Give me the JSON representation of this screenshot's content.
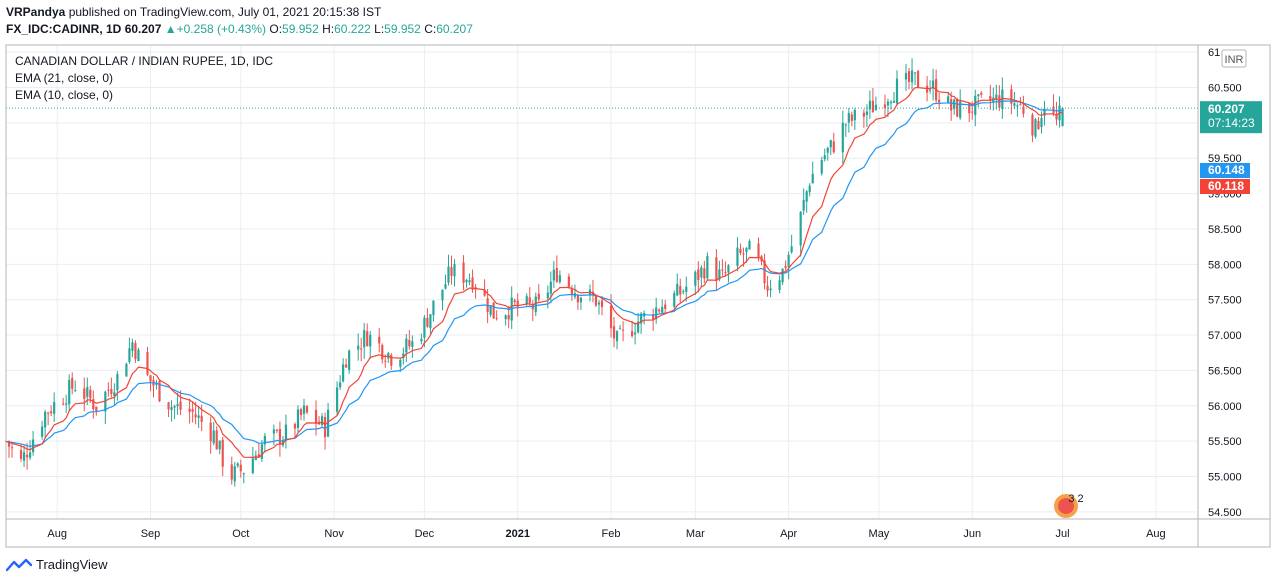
{
  "header": {
    "author": "VRPandya",
    "published_text": " published on TradingView.com, July 01, 2021 20:15:38 IST",
    "symbol": "FX_IDC:CADINR, 1D",
    "last": "60.207",
    "change": "+0.258 (+0.43%)",
    "o_label": "O:",
    "o": "59.952",
    "h_label": "H:",
    "h": "60.222",
    "l_label": "L:",
    "l": "59.952",
    "c_label": "C:",
    "c": "60.207"
  },
  "footer": {
    "brand": "TradingView"
  },
  "colors": {
    "up": "#26a69a",
    "down": "#ef5350",
    "ema21": "#2196f3",
    "ema10": "#f44336",
    "grid": "#e9eef3"
  },
  "chart_data": {
    "type": "candlestick",
    "title": "CANADIAN DOLLAR / INDIAN RUPEE, 1D, IDC",
    "legend": [
      "EMA (21, close, 0)",
      "EMA (10, close, 0)"
    ],
    "currency_label": "INR",
    "ylim": [
      54.4,
      61.1
    ],
    "y_ticks": [
      "61",
      "60.500",
      "60.000",
      "59.500",
      "59.000",
      "58.500",
      "58.000",
      "57.500",
      "57.000",
      "56.500",
      "56.000",
      "55.500",
      "55.000",
      "54.500"
    ],
    "y_tick_values": [
      61.0,
      60.5,
      60.0,
      59.5,
      59.0,
      58.5,
      58.0,
      57.5,
      57.0,
      56.5,
      56.0,
      55.5,
      55.0,
      54.5
    ],
    "x_ticks": [
      "Aug",
      "Sep",
      "Oct",
      "Nov",
      "Dec",
      "2021",
      "Feb",
      "Mar",
      "Apr",
      "May",
      "Jun",
      "Jul",
      "Aug"
    ],
    "x_tick_dates": [
      "2020-08-01",
      "2020-09-01",
      "2020-10-01",
      "2020-11-01",
      "2020-12-01",
      "2021-01-01",
      "2021-02-01",
      "2021-03-01",
      "2021-04-01",
      "2021-05-01",
      "2021-06-01",
      "2021-07-01",
      "2021-08-01"
    ],
    "x_start_date": "2020-07-15",
    "x_end_date": "2021-08-15",
    "close_anchors": [
      [
        "2020-07-15",
        55.5
      ],
      [
        "2020-07-20",
        55.2
      ],
      [
        "2020-07-28",
        55.9
      ],
      [
        "2020-08-07",
        56.3
      ],
      [
        "2020-08-14",
        56.0
      ],
      [
        "2020-08-21",
        56.4
      ],
      [
        "2020-08-26",
        56.9
      ],
      [
        "2020-08-31",
        56.4
      ],
      [
        "2020-09-08",
        56.0
      ],
      [
        "2020-09-15",
        55.9
      ],
      [
        "2020-09-22",
        55.6
      ],
      [
        "2020-09-27",
        55.0
      ],
      [
        "2020-10-02",
        55.1
      ],
      [
        "2020-10-09",
        55.5
      ],
      [
        "2020-10-16",
        55.6
      ],
      [
        "2020-10-22",
        55.9
      ],
      [
        "2020-10-29",
        55.7
      ],
      [
        "2020-11-05",
        56.7
      ],
      [
        "2020-11-12",
        57.0
      ],
      [
        "2020-11-20",
        56.7
      ],
      [
        "2020-11-28",
        56.9
      ],
      [
        "2020-12-05",
        57.5
      ],
      [
        "2020-12-10",
        57.9
      ],
      [
        "2020-12-17",
        57.8
      ],
      [
        "2020-12-24",
        57.3
      ],
      [
        "2020-12-31",
        57.4
      ],
      [
        "2021-01-08",
        57.4
      ],
      [
        "2021-01-14",
        57.9
      ],
      [
        "2021-01-21",
        57.6
      ],
      [
        "2021-01-27",
        57.5
      ],
      [
        "2021-02-03",
        56.9
      ],
      [
        "2021-02-10",
        57.2
      ],
      [
        "2021-02-17",
        57.4
      ],
      [
        "2021-02-24",
        57.6
      ],
      [
        "2021-03-01",
        57.8
      ],
      [
        "2021-03-05",
        58.0
      ],
      [
        "2021-03-10",
        57.8
      ],
      [
        "2021-03-15",
        58.1
      ],
      [
        "2021-03-20",
        58.2
      ],
      [
        "2021-03-25",
        57.7
      ],
      [
        "2021-03-30",
        57.9
      ],
      [
        "2021-04-04",
        58.5
      ],
      [
        "2021-04-08",
        59.2
      ],
      [
        "2021-04-12",
        59.5
      ],
      [
        "2021-04-16",
        59.7
      ],
      [
        "2021-04-20",
        60.0
      ],
      [
        "2021-04-25",
        60.1
      ],
      [
        "2021-05-01",
        60.3
      ],
      [
        "2021-05-07",
        60.5
      ],
      [
        "2021-05-13",
        60.6
      ],
      [
        "2021-05-19",
        60.5
      ],
      [
        "2021-05-25",
        60.2
      ],
      [
        "2021-05-31",
        60.2
      ],
      [
        "2021-06-06",
        60.3
      ],
      [
        "2021-06-12",
        60.35
      ],
      [
        "2021-06-18",
        60.2
      ],
      [
        "2021-06-22",
        59.9
      ],
      [
        "2021-06-25",
        60.3
      ],
      [
        "2021-06-29",
        60.0
      ],
      [
        "2021-07-01",
        60.207
      ]
    ],
    "last_price": 60.207,
    "last_price_label": "60.207",
    "countdown": "07:14:23",
    "ema21_label": "60.148",
    "ema10_label": "60.118",
    "events_badge": "3 2"
  }
}
